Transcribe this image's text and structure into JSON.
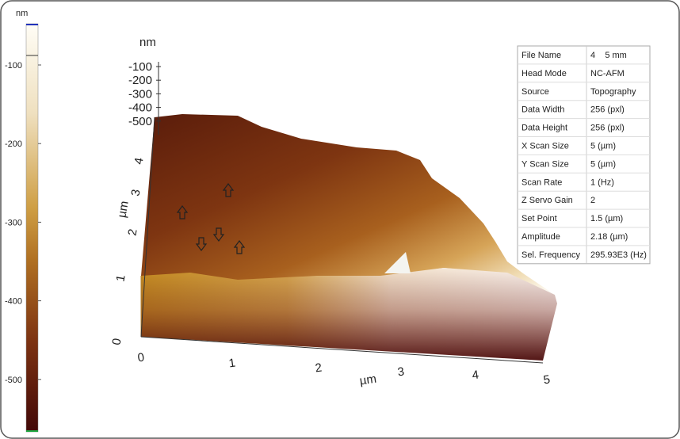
{
  "colorbar": {
    "unit": "nm",
    "labels": [
      "-100",
      "-200",
      "-300",
      "-400",
      "-500"
    ]
  },
  "surface": {
    "z_axis": {
      "unit": "nm",
      "labels": [
        "-100",
        "-200",
        "-300",
        "-400",
        "-500"
      ]
    },
    "y_axis": {
      "unit": "µm",
      "labels": [
        "0",
        "1",
        "2",
        "3",
        "4"
      ]
    },
    "x_axis": {
      "unit": "µm",
      "labels": [
        "0",
        "1",
        "2",
        "3",
        "4",
        "5"
      ]
    }
  },
  "info_table": {
    "rows": [
      [
        "File Name",
        "4    5 mm"
      ],
      [
        "Head Mode",
        "NC-AFM"
      ],
      [
        "Source",
        "Topography"
      ],
      [
        "Data Width",
        "256 (pxl)"
      ],
      [
        "Data Height",
        "256 (pxl)"
      ],
      [
        "X Scan Size",
        "5 (µm)"
      ],
      [
        "Y Scan Size",
        "5 (µm)"
      ],
      [
        "Scan Rate",
        "1 (Hz)"
      ],
      [
        "Z Servo Gain",
        "2"
      ],
      [
        "Set Point",
        "1.5 (µm)"
      ],
      [
        "Amplitude",
        "2.18 (µm)"
      ],
      [
        "Sel. Frequency",
        "295.93E3 (Hz)"
      ]
    ]
  }
}
